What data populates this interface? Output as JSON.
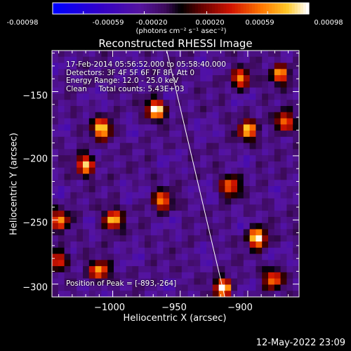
{
  "colorbar": {
    "ticks": [
      "-0.00098",
      "-0.00059",
      "-0.00020",
      "0.00020",
      "0.00059",
      "0.00098"
    ],
    "tick_values": [
      -0.00098,
      -0.00059,
      -0.0002,
      0.0002,
      0.00059,
      0.00098
    ],
    "unit_label": "(photons cm⁻² s⁻¹ asec⁻²)",
    "range": [
      -0.00098,
      0.00098
    ],
    "colormap": "blue-purple-red-orange-yellow-white"
  },
  "chart_data": {
    "type": "heatmap",
    "title": "Reconstructed RHESSI Image",
    "xlabel": "Heliocentric X (arcsec)",
    "ylabel": "Heliocentric Y (arcsec)",
    "xlim": [
      -1045,
      -862
    ],
    "ylim": [
      -310,
      -118
    ],
    "xticks": [
      -1000,
      -950,
      -900
    ],
    "xtick_labels": [
      "−1000",
      "−950",
      "−900"
    ],
    "yticks": [
      -300,
      -250,
      -200,
      -150
    ],
    "ytick_labels": [
      "−300",
      "−250",
      "−200",
      "−150"
    ],
    "annotations": [
      "17-Feb-2014 05:56:52.000 to 05:58:40.000",
      "Detectors: 3F 4F 5F 6F 7F 8F, Att 0",
      "Energy Range: 12.0 - 25.0 keV",
      "Clean     Total counts: 5.43E+03"
    ],
    "peak_label": "Position of Peak = [-893,-264]",
    "peak_position": [
      -893,
      -264
    ],
    "limb_line": [
      [
        -960,
        -118
      ],
      [
        -917,
        -310
      ]
    ],
    "hot_spots": [
      {
        "x": -968,
        "y": -164,
        "value": 0.00098
      },
      {
        "x": -1008,
        "y": -179,
        "value": 0.0009
      },
      {
        "x": -1020,
        "y": -207,
        "value": 0.0008
      },
      {
        "x": -893,
        "y": -264,
        "value": 0.00098
      },
      {
        "x": -1000,
        "y": -250,
        "value": 0.0008
      },
      {
        "x": -963,
        "y": -235,
        "value": 0.0006
      },
      {
        "x": -873,
        "y": -174,
        "value": 0.0007
      },
      {
        "x": -900,
        "y": -180,
        "value": 0.00075
      },
      {
        "x": -913,
        "y": -224,
        "value": 0.0006
      },
      {
        "x": -918,
        "y": -303,
        "value": 0.00085
      },
      {
        "x": -1010,
        "y": -290,
        "value": 0.0007
      },
      {
        "x": -1039,
        "y": -250,
        "value": 0.0006
      },
      {
        "x": -1041,
        "y": -281,
        "value": 0.0006
      },
      {
        "x": -876,
        "y": -136,
        "value": 0.0007
      },
      {
        "x": -881,
        "y": -296,
        "value": 0.0006
      },
      {
        "x": -905,
        "y": -140,
        "value": 0.0006
      }
    ]
  },
  "footer": {
    "date": "12-May-2022 23:09"
  }
}
